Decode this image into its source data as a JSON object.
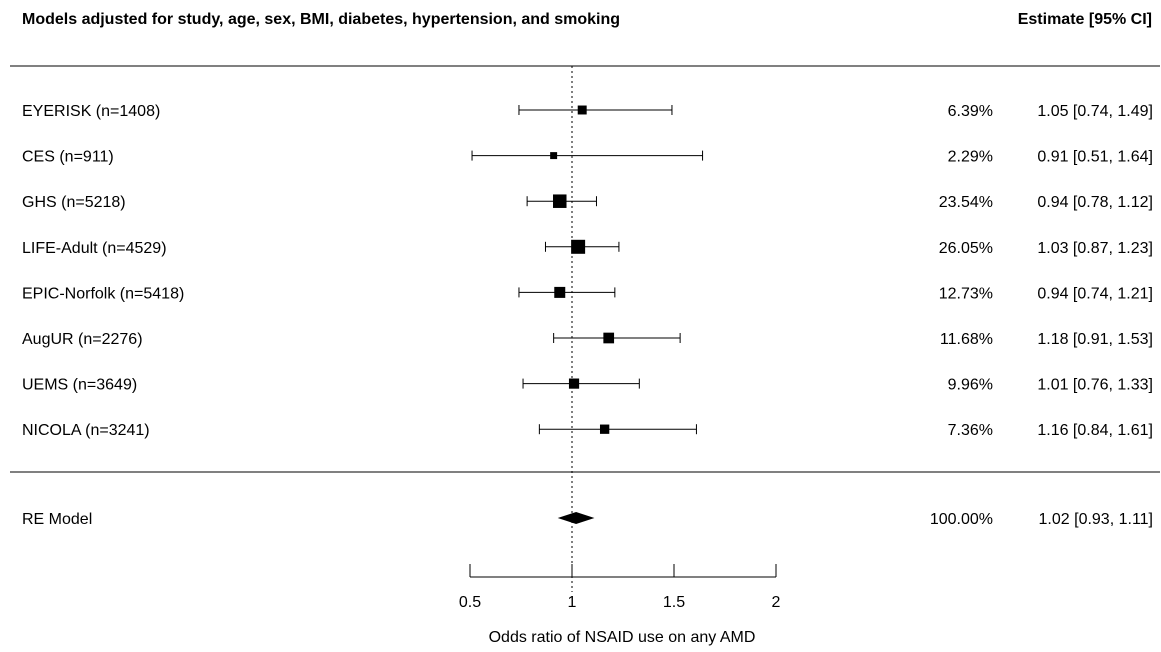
{
  "header": {
    "left": "Models adjusted for study, age, sex, BMI, diabetes, hypertension, and smoking",
    "right": "Estimate [95% CI]"
  },
  "chart_data": {
    "type": "forest",
    "xlabel": "Odds ratio of NSAID use on any AMD",
    "xlim": [
      0.5,
      2
    ],
    "xticks": [
      0.5,
      1,
      1.5,
      2
    ],
    "xtick_labels": [
      "0.5",
      "1",
      "1.5",
      "2"
    ],
    "reference_line": 1,
    "studies": [
      {
        "label": "EYERISK (n=1408)",
        "estimate": 1.05,
        "lower": 0.74,
        "upper": 1.49,
        "weight": 6.39,
        "weight_text": "6.39%",
        "ci_text": "1.05 [0.74, 1.49]"
      },
      {
        "label": "CES (n=911)",
        "estimate": 0.91,
        "lower": 0.51,
        "upper": 1.64,
        "weight": 2.29,
        "weight_text": "2.29%",
        "ci_text": "0.91 [0.51, 1.64]"
      },
      {
        "label": "GHS (n=5218)",
        "estimate": 0.94,
        "lower": 0.78,
        "upper": 1.12,
        "weight": 23.54,
        "weight_text": "23.54%",
        "ci_text": "0.94 [0.78, 1.12]"
      },
      {
        "label": "LIFE-Adult (n=4529)",
        "estimate": 1.03,
        "lower": 0.87,
        "upper": 1.23,
        "weight": 26.05,
        "weight_text": "26.05%",
        "ci_text": "1.03 [0.87, 1.23]"
      },
      {
        "label": "EPIC-Norfolk (n=5418)",
        "estimate": 0.94,
        "lower": 0.74,
        "upper": 1.21,
        "weight": 12.73,
        "weight_text": "12.73%",
        "ci_text": "0.94 [0.74, 1.21]"
      },
      {
        "label": "AugUR (n=2276)",
        "estimate": 1.18,
        "lower": 0.91,
        "upper": 1.53,
        "weight": 11.68,
        "weight_text": "11.68%",
        "ci_text": "1.18 [0.91, 1.53]"
      },
      {
        "label": "UEMS (n=3649)",
        "estimate": 1.01,
        "lower": 0.76,
        "upper": 1.33,
        "weight": 9.96,
        "weight_text": "9.96%",
        "ci_text": "1.01 [0.76, 1.33]"
      },
      {
        "label": "NICOLA (n=3241)",
        "estimate": 1.16,
        "lower": 0.84,
        "upper": 1.61,
        "weight": 7.36,
        "weight_text": "7.36%",
        "ci_text": "1.16 [0.84, 1.61]"
      }
    ],
    "summary": {
      "label": "RE Model",
      "estimate": 1.02,
      "lower": 0.93,
      "upper": 1.11,
      "weight": 100,
      "weight_text": "100.00%",
      "ci_text": "1.02 [0.93, 1.11]"
    }
  }
}
